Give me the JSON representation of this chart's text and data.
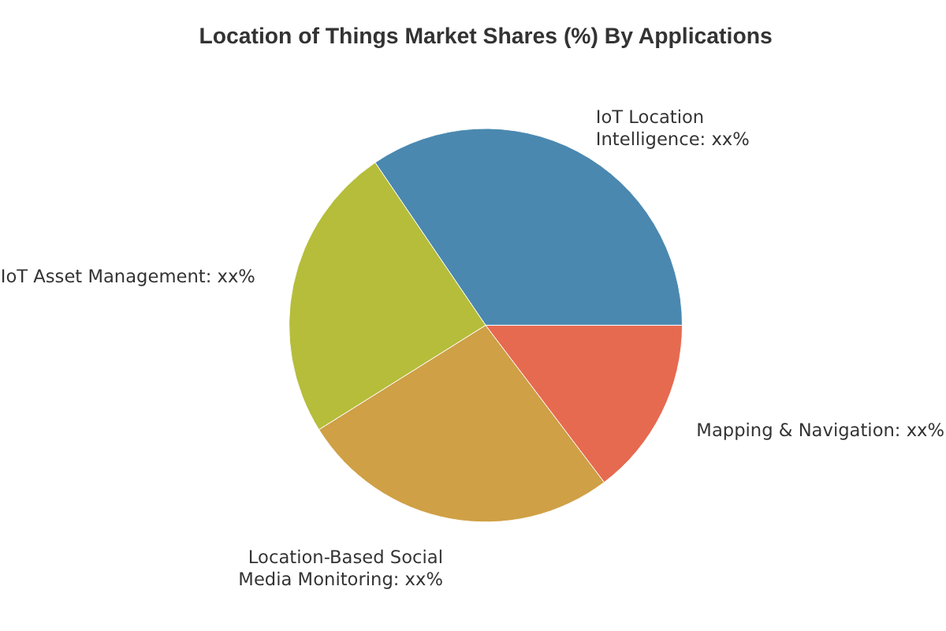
{
  "chart_data": {
    "type": "pie",
    "title": "Location of Things Market Shares (%) By Applications",
    "categories": [
      "IoT Location Intelligence",
      "IoT Asset Management",
      "Location-Based Social Media Monitoring",
      "Mapping & Navigation"
    ],
    "values": [
      34.5,
      24.4,
      26.4,
      14.7
    ],
    "value_labels": [
      "xx%",
      "xx%",
      "xx%",
      "xx%"
    ],
    "colors": [
      "#4a88b0",
      "#b5bd3a",
      "#cfa045",
      "#e66a50"
    ],
    "legend": false
  }
}
